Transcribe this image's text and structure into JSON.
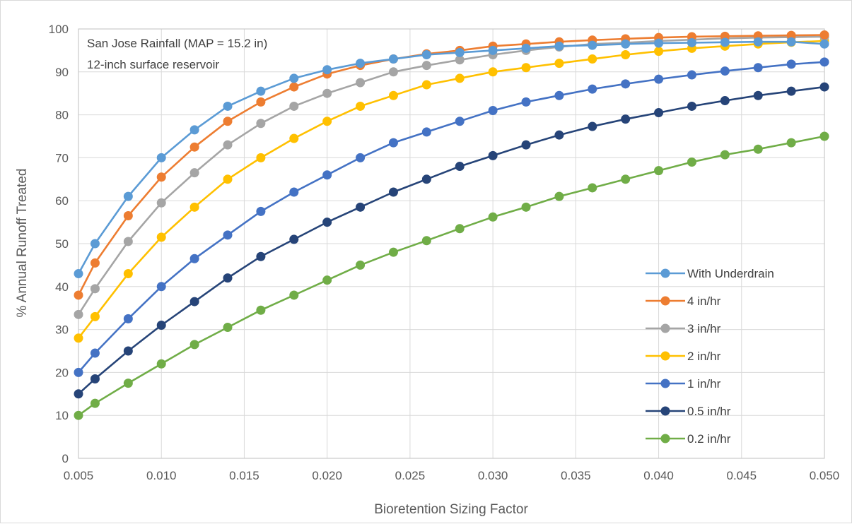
{
  "chart_data": {
    "type": "line",
    "title": "",
    "xlabel": "Bioretention Sizing Factor",
    "ylabel": "% Annual Runoff Treated",
    "xlim": [
      0.005,
      0.05
    ],
    "ylim": [
      0,
      100
    ],
    "x_ticks": [
      "0.005",
      "0.010",
      "0.015",
      "0.020",
      "0.025",
      "0.030",
      "0.035",
      "0.040",
      "0.045",
      "0.050"
    ],
    "y_ticks": [
      "0",
      "10",
      "20",
      "30",
      "40",
      "50",
      "60",
      "70",
      "80",
      "90",
      "100"
    ],
    "grid": true,
    "legend_position": "lower-right",
    "annotations": [
      "San Jose Rainfall (MAP = 15.2 in)",
      "12-inch surface reservoir"
    ],
    "x": [
      0.005,
      0.006,
      0.008,
      0.01,
      0.012,
      0.014,
      0.016,
      0.018,
      0.02,
      0.022,
      0.024,
      0.026,
      0.028,
      0.03,
      0.032,
      0.034,
      0.036,
      0.038,
      0.04,
      0.042,
      0.044,
      0.046,
      0.048,
      0.05
    ],
    "series": [
      {
        "name": "With Underdrain",
        "color": "#5B9BD5",
        "values": [
          43,
          50,
          61,
          70,
          76.5,
          82,
          85.5,
          88.5,
          90.5,
          92,
          93,
          94,
          94.5,
          95,
          95.5,
          96,
          96.2,
          96.5,
          96.7,
          96.8,
          96.9,
          97,
          97,
          96.5
        ]
      },
      {
        "name": "4 in/hr",
        "color": "#ED7D31",
        "values": [
          38,
          45.5,
          56.5,
          65.5,
          72.5,
          78.5,
          83,
          86.5,
          89.5,
          91.5,
          93,
          94.2,
          95,
          96,
          96.5,
          97,
          97.4,
          97.7,
          98,
          98.2,
          98.3,
          98.4,
          98.5,
          98.6
        ]
      },
      {
        "name": "3 in/hr",
        "color": "#A5A5A5",
        "values": [
          33.5,
          39.5,
          50.5,
          59.5,
          66.5,
          73,
          78,
          82,
          85,
          87.5,
          90,
          91.5,
          92.8,
          94,
          95,
          95.8,
          96.5,
          96.8,
          97.2,
          97.5,
          97.8,
          98,
          98.1,
          98.2
        ]
      },
      {
        "name": "2 in/hr",
        "color": "#FFC000",
        "values": [
          28,
          33,
          43,
          51.5,
          58.5,
          65,
          70,
          74.5,
          78.5,
          82,
          84.5,
          87,
          88.5,
          90,
          91,
          92,
          93,
          94,
          94.8,
          95.5,
          96,
          96.5,
          96.9,
          97.2
        ]
      },
      {
        "name": "1 in/hr",
        "color": "#4472C4",
        "values": [
          20,
          24.5,
          32.5,
          40,
          46.5,
          52,
          57.5,
          62,
          66,
          70,
          73.5,
          76,
          78.5,
          81,
          83,
          84.5,
          86,
          87.2,
          88.3,
          89.3,
          90.2,
          91,
          91.8,
          92.3
        ]
      },
      {
        "name": "0.5 in/hr",
        "color": "#264478",
        "values": [
          15,
          18.5,
          25,
          31,
          36.5,
          42,
          47,
          51,
          55,
          58.5,
          62,
          65,
          68,
          70.5,
          73,
          75.3,
          77.3,
          79,
          80.5,
          82,
          83.3,
          84.5,
          85.5,
          86.5
        ]
      },
      {
        "name": "0.2 in/hr",
        "color": "#70AD47",
        "values": [
          10,
          12.8,
          17.5,
          22,
          26.5,
          30.5,
          34.5,
          38,
          41.5,
          45,
          48,
          50.7,
          53.5,
          56.2,
          58.5,
          61,
          63,
          65,
          67,
          69,
          70.7,
          72,
          73.5,
          75
        ]
      }
    ]
  }
}
